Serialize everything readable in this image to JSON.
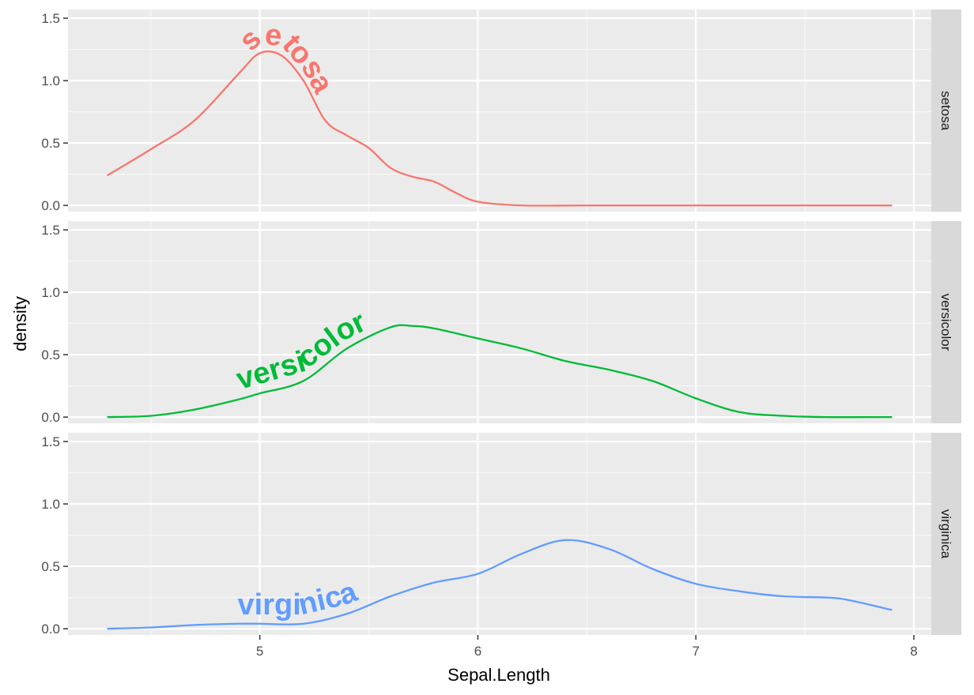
{
  "chart_data": {
    "type": "line",
    "subtype": "faceted density plot with curved text labels",
    "xlabel": "Sepal.Length",
    "ylabel": "density",
    "xlim": [
      4.12,
      8.08
    ],
    "ylim": [
      -0.05,
      1.57
    ],
    "x_ticks": [
      5,
      6,
      7,
      8
    ],
    "x_tick_labels": [
      "5",
      "6",
      "7",
      "8"
    ],
    "y_ticks": [
      0,
      0.5,
      1,
      1.5
    ],
    "y_tick_labels": [
      "0.0",
      "0.5",
      "1.0",
      "1.5"
    ],
    "grid": true,
    "legend": "none",
    "panel_background": "#ebebeb",
    "strip_background": "#d9d9d9",
    "series": [
      {
        "name": "setosa",
        "label": "setosa",
        "color": "#F8766D",
        "x": [
          4.3,
          4.5,
          4.7,
          4.9,
          5.0,
          5.1,
          5.2,
          5.3,
          5.4,
          5.5,
          5.6,
          5.7,
          5.8,
          5.9,
          6.0,
          6.2,
          6.5,
          7.0,
          7.5,
          7.9
        ],
        "y": [
          0.24,
          0.45,
          0.68,
          1.05,
          1.22,
          1.2,
          1.0,
          0.68,
          0.56,
          0.46,
          0.3,
          0.23,
          0.19,
          0.1,
          0.03,
          0.0,
          0.0,
          0.0,
          0.0,
          0.0
        ]
      },
      {
        "name": "versicolor",
        "label": "versicolor",
        "color": "#00BA38",
        "x": [
          4.3,
          4.5,
          4.7,
          4.9,
          5.0,
          5.2,
          5.4,
          5.6,
          5.7,
          5.8,
          6.0,
          6.2,
          6.4,
          6.6,
          6.8,
          7.0,
          7.2,
          7.4,
          7.6,
          7.9
        ],
        "y": [
          0.0,
          0.01,
          0.06,
          0.14,
          0.19,
          0.29,
          0.55,
          0.72,
          0.73,
          0.71,
          0.63,
          0.55,
          0.45,
          0.38,
          0.29,
          0.15,
          0.04,
          0.01,
          0.0,
          0.0
        ]
      },
      {
        "name": "virginica",
        "label": "virginica",
        "color": "#619CFF",
        "x": [
          4.3,
          4.5,
          4.7,
          4.9,
          5.0,
          5.2,
          5.4,
          5.6,
          5.8,
          6.0,
          6.2,
          6.4,
          6.6,
          6.8,
          7.0,
          7.2,
          7.4,
          7.6,
          7.7,
          7.9
        ],
        "y": [
          0.0,
          0.01,
          0.03,
          0.04,
          0.04,
          0.04,
          0.12,
          0.26,
          0.37,
          0.44,
          0.6,
          0.71,
          0.64,
          0.48,
          0.36,
          0.3,
          0.26,
          0.25,
          0.23,
          0.15
        ]
      }
    ]
  }
}
